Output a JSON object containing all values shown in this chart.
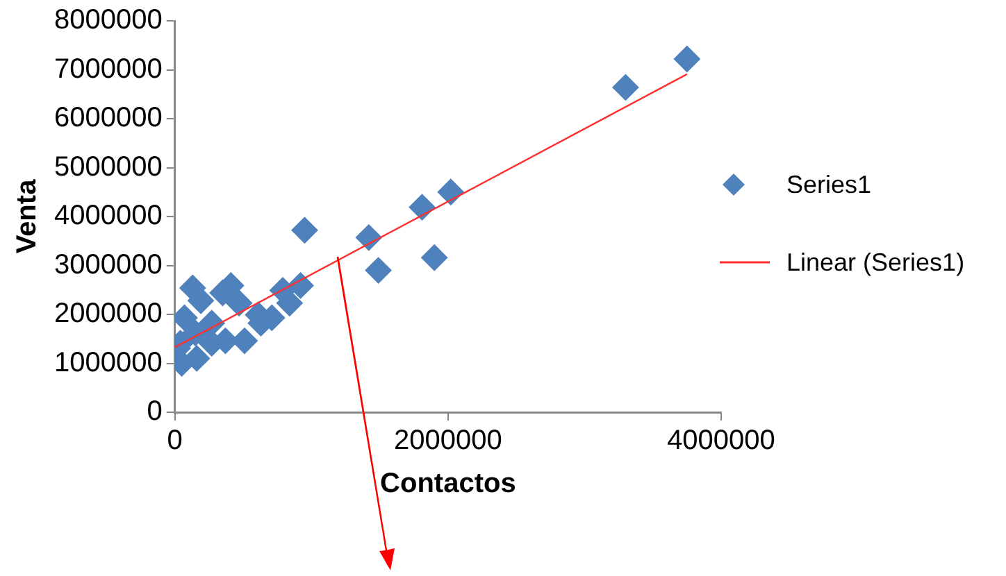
{
  "chart_data": {
    "type": "scatter",
    "xlabel": "Contactos",
    "ylabel": "Venta",
    "xlim": [
      0,
      4000000
    ],
    "xticks": [
      0,
      2000000,
      4000000
    ],
    "ylim": [
      0,
      8000000
    ],
    "yticks": [
      0,
      1000000,
      2000000,
      3000000,
      4000000,
      5000000,
      6000000,
      7000000,
      8000000
    ],
    "grid": false,
    "legend": "right",
    "series": [
      {
        "name": "Series1",
        "marker": "diamond",
        "color": "#4f81bd",
        "x": [
          3750000,
          3300000,
          2020000,
          1810000,
          950000,
          1420000,
          1490000,
          1900000,
          920000,
          790000,
          840000,
          710000,
          610000,
          510000,
          410000,
          470000,
          350000,
          370000,
          270000,
          130000,
          190000,
          70000,
          150000,
          40000,
          20000,
          50000,
          160000,
          270000,
          630000
        ],
        "values": [
          7220000,
          6640000,
          4500000,
          4190000,
          3720000,
          3570000,
          2900000,
          3160000,
          2590000,
          2490000,
          2230000,
          1930000,
          1990000,
          1460000,
          2590000,
          2230000,
          2440000,
          1460000,
          1820000,
          2540000,
          2280000,
          1930000,
          1620000,
          1410000,
          1310000,
          1000000,
          1100000,
          1410000,
          1820000
        ]
      },
      {
        "name": "Linear (Series1)",
        "type": "line",
        "marker": "none",
        "line_style": "solid",
        "color": "#ff3030",
        "x": [
          0,
          3750000
        ],
        "values": [
          1330000,
          6910000
        ]
      }
    ]
  }
}
